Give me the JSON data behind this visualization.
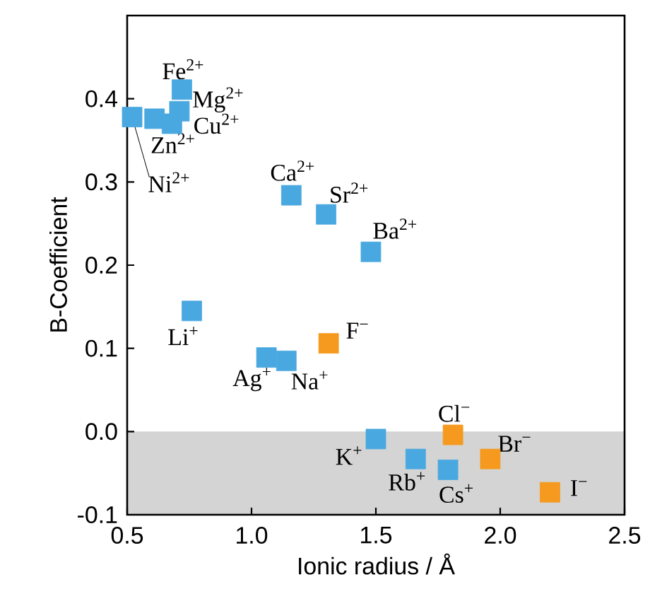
{
  "chart_data": {
    "type": "scatter",
    "xlabel": "Ionic radius / Å",
    "ylabel": "B-Coefficient",
    "xlim": [
      0.5,
      2.5
    ],
    "ylim": [
      -0.1,
      0.5
    ],
    "xticks": [
      {
        "value": 0.5,
        "label": "0.5"
      },
      {
        "value": 1.0,
        "label": "1.0"
      },
      {
        "value": 1.5,
        "label": "1.5"
      },
      {
        "value": 2.0,
        "label": "2.0"
      },
      {
        "value": 2.5,
        "label": "2.5"
      }
    ],
    "yticks": [
      {
        "value": -0.1,
        "label": "-0.1"
      },
      {
        "value": 0.0,
        "label": "0.0"
      },
      {
        "value": 0.1,
        "label": "0.1"
      },
      {
        "value": 0.2,
        "label": "0.2"
      },
      {
        "value": 0.3,
        "label": "0.3"
      },
      {
        "value": 0.4,
        "label": "0.4"
      }
    ],
    "grid": false,
    "marker": "square",
    "series": [
      {
        "color": "#4aa8e0",
        "x": [
          0.72,
          0.71,
          0.68,
          0.61,
          0.52,
          1.16,
          1.3,
          1.48,
          0.76,
          1.06,
          1.14,
          1.5,
          1.66,
          1.79
        ],
        "values": [
          0.411,
          0.385,
          0.37,
          0.376,
          0.378,
          0.284,
          0.261,
          0.216,
          0.145,
          0.089,
          0.085,
          -0.009,
          -0.033,
          -0.046
        ]
      },
      {
        "color": "#f59a1e",
        "x": [
          1.31,
          1.81,
          1.96,
          2.2
        ],
        "values": [
          0.106,
          -0.004,
          -0.033,
          -0.073
        ]
      }
    ],
    "bands": [
      {
        "axis": "y",
        "from": -0.1,
        "to": 0.0,
        "color": "#d4d4d4"
      }
    ],
    "annotations": [
      {
        "text": "Fe$^{2+}$",
        "x": 0.72,
        "y": 0.411
      },
      {
        "text": "Mg$^{2+}$",
        "x": 0.71,
        "y": 0.385
      },
      {
        "text": "Cu$^{2+}$",
        "x": 0.68,
        "y": 0.37
      },
      {
        "text": "Zn$^{2+}$",
        "x": 0.61,
        "y": 0.376
      },
      {
        "text": "Ni$^{2+}$",
        "x": 0.52,
        "y": 0.378
      },
      {
        "text": "Ca$^{2+}$",
        "x": 1.16,
        "y": 0.284
      },
      {
        "text": "Sr$^{2+}$",
        "x": 1.3,
        "y": 0.261
      },
      {
        "text": "Ba$^{2+}$",
        "x": 1.48,
        "y": 0.216
      },
      {
        "text": "Li$^{+}$",
        "x": 0.76,
        "y": 0.145
      },
      {
        "text": "Ag$^{+}$",
        "x": 1.06,
        "y": 0.089
      },
      {
        "text": "Na$^{+}$",
        "x": 1.14,
        "y": 0.085
      },
      {
        "text": "K$^{+}$",
        "x": 1.5,
        "y": -0.009
      },
      {
        "text": "Rb$^{+}$",
        "x": 1.66,
        "y": -0.033
      },
      {
        "text": "Cs$^{+}$",
        "x": 1.79,
        "y": -0.046
      },
      {
        "text": "F$^{−}$",
        "x": 1.31,
        "y": 0.106
      },
      {
        "text": "Cl$^{−}$",
        "x": 1.81,
        "y": -0.004
      },
      {
        "text": "Br$^{−}$",
        "x": 1.96,
        "y": -0.033
      },
      {
        "text": "I$^{−}$",
        "x": 2.2,
        "y": -0.073
      }
    ]
  }
}
